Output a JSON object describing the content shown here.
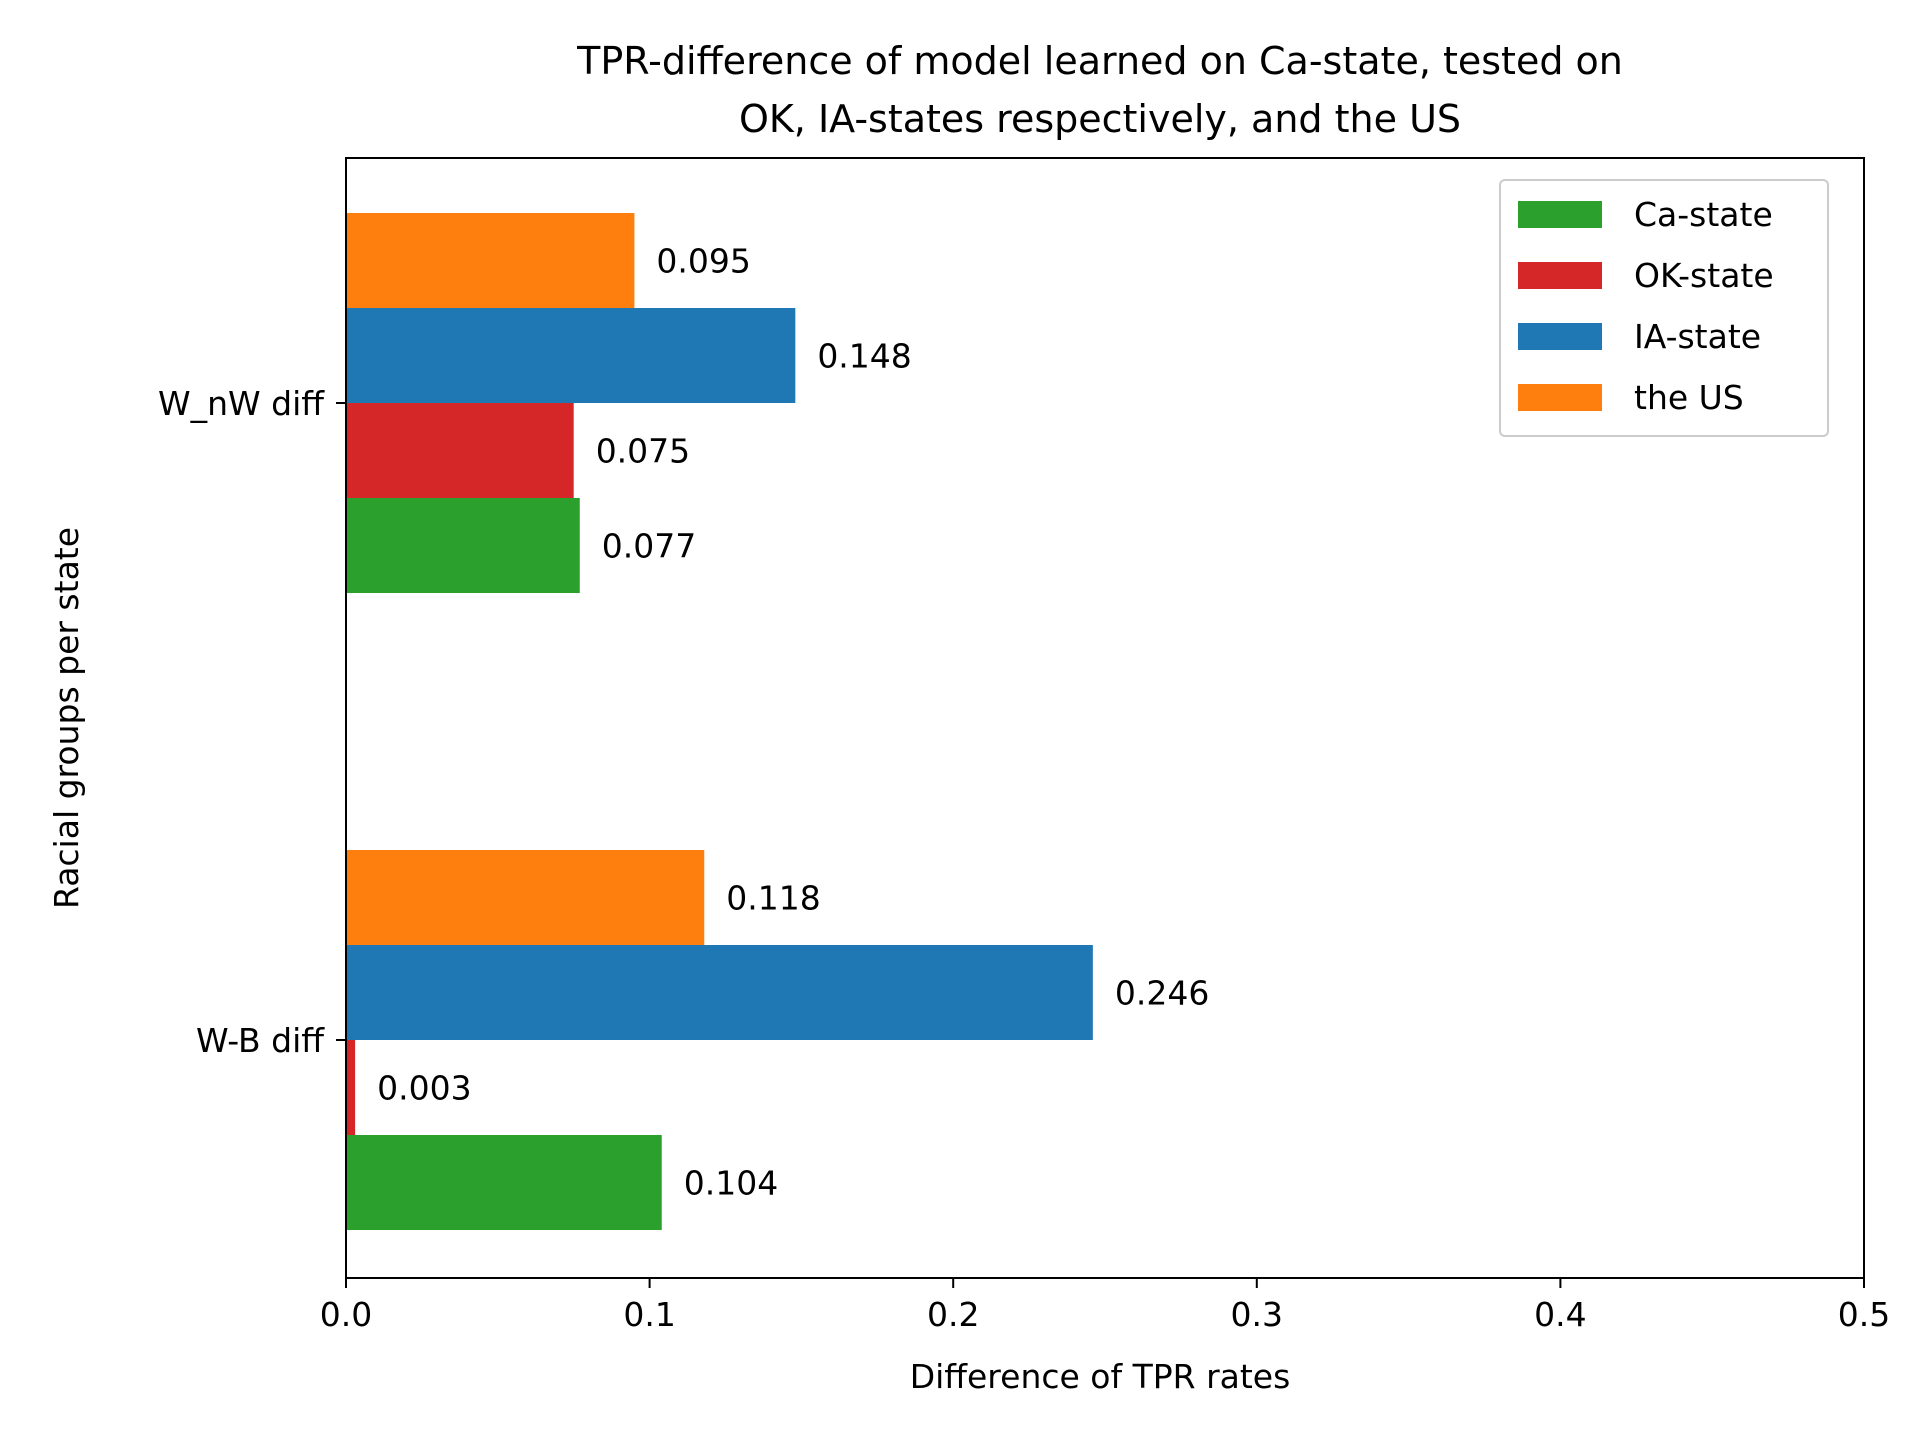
{
  "chart_data": {
    "type": "bar",
    "orientation": "horizontal",
    "title_lines": [
      "TPR-difference of model learned on Ca-state, tested on",
      "OK, IA-states respectively, and the US"
    ],
    "xlabel": "Difference of TPR rates",
    "ylabel": "Racial groups per state",
    "xlim": [
      0,
      0.5
    ],
    "xticks": [
      0.0,
      0.1,
      0.2,
      0.3,
      0.4,
      0.5
    ],
    "xtick_labels": [
      "0.0",
      "0.1",
      "0.2",
      "0.3",
      "0.4",
      "0.5"
    ],
    "grid": false,
    "legend_position": "top-right",
    "categories": [
      "W-B diff",
      "W_nW diff"
    ],
    "series": [
      {
        "name": "Ca-state",
        "color": "#2ca02c",
        "values": [
          0.104,
          0.077
        ],
        "labels": [
          "0.104",
          "0.077"
        ]
      },
      {
        "name": "OK-state",
        "color": "#d62728",
        "values": [
          0.003,
          0.075
        ],
        "labels": [
          "0.003",
          "0.075"
        ]
      },
      {
        "name": "IA-state",
        "color": "#1f77b4",
        "values": [
          0.246,
          0.148
        ],
        "labels": [
          "0.246",
          "0.148"
        ]
      },
      {
        "name": "the US",
        "color": "#ff7f0e",
        "values": [
          0.118,
          0.095
        ],
        "labels": [
          "0.118",
          "0.095"
        ]
      }
    ]
  }
}
